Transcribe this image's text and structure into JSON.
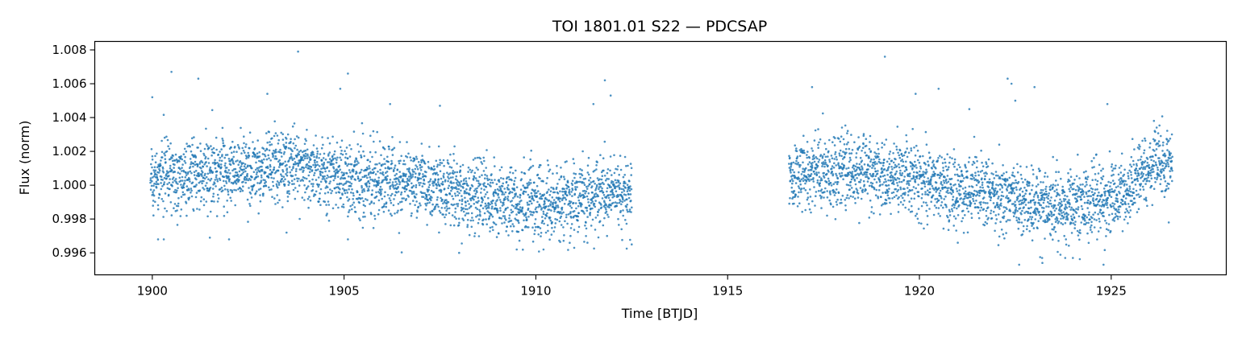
{
  "chart_data": {
    "type": "scatter",
    "title": "TOI 1801.01 S22 — PDCSAP",
    "xlabel": "Time [BTJD]",
    "ylabel": "Flux (norm)",
    "xlim": [
      1898.5,
      1928.0
    ],
    "ylim": [
      0.9947,
      1.0085
    ],
    "xticks": [
      1900,
      1905,
      1910,
      1915,
      1920,
      1925
    ],
    "yticks": [
      0.996,
      0.998,
      1.0,
      1.002,
      1.004,
      1.006,
      1.008
    ],
    "ytick_labels": [
      "0.996",
      "0.998",
      "1.000",
      "1.002",
      "1.004",
      "1.006",
      "1.008"
    ],
    "grid": false,
    "legend": "none",
    "marker_color": "#1f77b4",
    "series": [
      {
        "segments": [
          {
            "x_range": [
              1899.95,
              1912.5
            ],
            "scatter_std": 0.0011,
            "trend": [
              [
                1899.95,
                1.0004
              ],
              [
                1902.0,
                1.0008
              ],
              [
                1903.5,
                1.0012
              ],
              [
                1905.0,
                1.0005
              ],
              [
                1906.0,
                1.0002
              ],
              [
                1907.0,
                1.0
              ],
              [
                1909.0,
                0.9991
              ],
              [
                1910.5,
                0.999
              ],
              [
                1912.5,
                0.9995
              ]
            ]
          },
          {
            "x_range": [
              1916.6,
              1926.6
            ],
            "scatter_std": 0.0011,
            "trend": [
              [
                1916.6,
                1.0007
              ],
              [
                1918.5,
                1.0008
              ],
              [
                1920.0,
                1.0002
              ],
              [
                1922.0,
                0.9994
              ],
              [
                1923.5,
                0.9987
              ],
              [
                1924.8,
                0.999
              ],
              [
                1925.5,
                1.0
              ],
              [
                1926.0,
                1.001
              ],
              [
                1926.6,
                1.0016
              ]
            ]
          }
        ],
        "outliers": [
          [
            1901.2,
            1.0063
          ],
          [
            1900.5,
            1.0067
          ],
          [
            1903.8,
            1.0079
          ],
          [
            1904.9,
            1.0057
          ],
          [
            1905.1,
            1.0066
          ],
          [
            1903.0,
            1.0054
          ],
          [
            1911.8,
            1.0062
          ],
          [
            1911.5,
            1.0048
          ],
          [
            1911.95,
            1.0053
          ],
          [
            1907.5,
            1.0047
          ],
          [
            1906.2,
            1.0048
          ],
          [
            1919.1,
            1.0076
          ],
          [
            1922.3,
            1.0063
          ],
          [
            1922.4,
            1.006
          ],
          [
            1920.5,
            1.0057
          ],
          [
            1919.9,
            1.0054
          ],
          [
            1917.2,
            1.0058
          ],
          [
            1921.3,
            1.0045
          ],
          [
            1922.5,
            1.005
          ],
          [
            1923.0,
            1.0058
          ],
          [
            1924.9,
            1.0048
          ],
          [
            1922.6,
            0.9953
          ],
          [
            1924.8,
            0.9953
          ],
          [
            1923.2,
            0.9957
          ],
          [
            1924.0,
            0.9957
          ],
          [
            1903.5,
            0.9972
          ],
          [
            1901.5,
            0.9969
          ],
          [
            1902.0,
            0.9968
          ],
          [
            1900.15,
            0.9968
          ],
          [
            1900.3,
            0.9968
          ],
          [
            1905.1,
            0.9968
          ],
          [
            1908.0,
            0.996
          ],
          [
            1909.5,
            0.9962
          ],
          [
            1910.2,
            0.9962
          ],
          [
            1911.0,
            0.9963
          ],
          [
            1912.5,
            0.9965
          ],
          [
            1921.0,
            0.9966
          ],
          [
            1926.5,
            0.9978
          ],
          [
            1923.8,
            0.9957
          ],
          [
            1900.0,
            1.0052
          ]
        ]
      }
    ]
  }
}
